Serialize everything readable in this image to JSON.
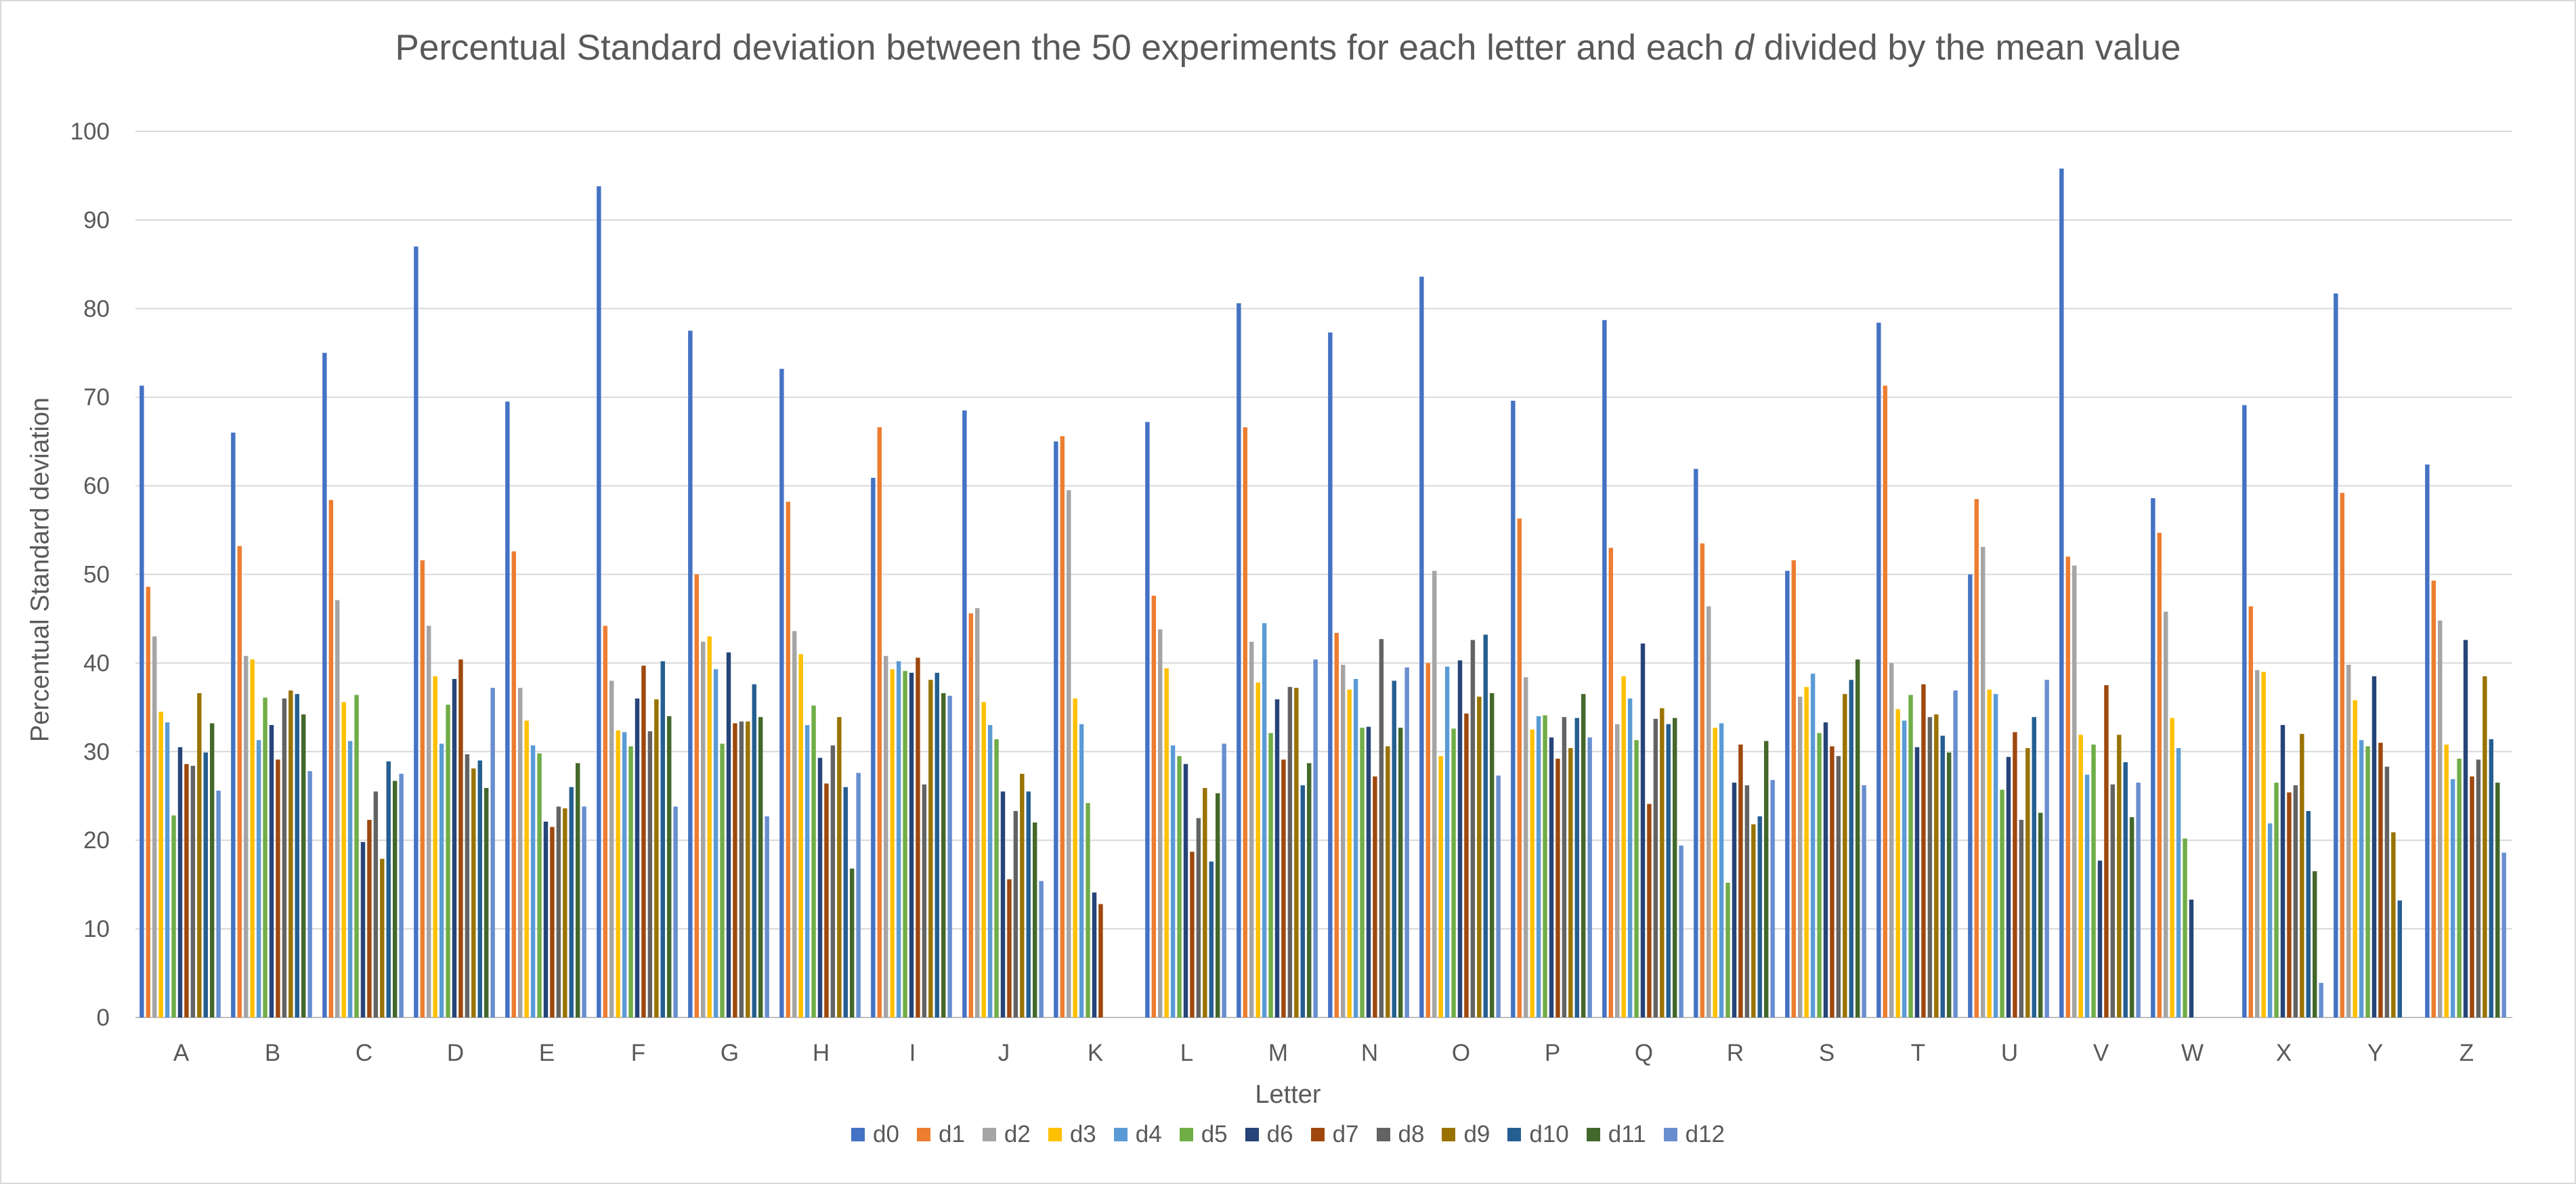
{
  "chart_data": {
    "type": "bar",
    "title": {
      "prefix": "Percentual Standard deviation between the 50 experiments for each letter and each ",
      "italic": "d",
      "suffix": " divided by the mean value"
    },
    "xlabel": "Letter",
    "ylabel": "Percentual Standard deviation",
    "ylim": [
      0,
      100
    ],
    "yticks": [
      0,
      10,
      20,
      30,
      40,
      50,
      60,
      70,
      80,
      90,
      100
    ],
    "grid": true,
    "legend_position": "bottom",
    "categories": [
      "A",
      "B",
      "C",
      "D",
      "E",
      "F",
      "G",
      "H",
      "I",
      "J",
      "K",
      "L",
      "M",
      "N",
      "O",
      "P",
      "Q",
      "R",
      "S",
      "T",
      "U",
      "V",
      "W",
      "X",
      "Y",
      "Z"
    ],
    "series": [
      {
        "name": "d0",
        "color": "#4472c4",
        "values": [
          71.3,
          66,
          75,
          87,
          69.5,
          93.8,
          77.5,
          73.2,
          60.9,
          68.5,
          65,
          67.2,
          80.6,
          77.3,
          83.6,
          69.6,
          78.7,
          61.9,
          50.4,
          78.4,
          50,
          95.8,
          58.6,
          69.1,
          81.7,
          62.4
        ]
      },
      {
        "name": "d1",
        "color": "#ed7d31",
        "values": [
          48.6,
          53.2,
          58.4,
          51.6,
          52.6,
          44.2,
          50,
          58.2,
          66.6,
          45.6,
          65.6,
          47.6,
          66.6,
          43.4,
          40,
          56.3,
          53,
          53.5,
          51.6,
          71.3,
          58.5,
          52,
          54.7,
          46.4,
          59.2,
          49.3
        ]
      },
      {
        "name": "d2",
        "color": "#a5a5a5",
        "values": [
          43,
          40.8,
          47.1,
          44.2,
          37.2,
          38,
          42.4,
          43.6,
          40.8,
          46.2,
          59.5,
          43.8,
          42.4,
          39.8,
          50.4,
          38.4,
          33.1,
          46.4,
          36.2,
          40,
          53.1,
          51,
          45.8,
          39.2,
          39.8,
          44.8
        ]
      },
      {
        "name": "d3",
        "color": "#ffc000",
        "values": [
          34.5,
          40.4,
          35.6,
          38.5,
          33.5,
          32.4,
          43,
          41,
          39.3,
          35.6,
          36,
          39.4,
          37.8,
          37,
          29.5,
          32.5,
          38.5,
          32.7,
          37.3,
          34.8,
          37,
          31.9,
          33.8,
          39,
          35.8,
          30.8
        ]
      },
      {
        "name": "d4",
        "color": "#5b9bd5",
        "values": [
          33.3,
          31.3,
          31.2,
          30.9,
          30.7,
          32.2,
          39.3,
          33,
          40.2,
          33,
          33.1,
          30.7,
          44.5,
          38.2,
          39.6,
          34,
          36,
          33.2,
          38.8,
          33.5,
          36.5,
          27.4,
          30.4,
          21.9,
          31.3,
          26.9
        ]
      },
      {
        "name": "d5",
        "color": "#70ad47",
        "values": [
          22.8,
          36.1,
          36.4,
          35.3,
          29.8,
          30.6,
          30.9,
          35.2,
          39.1,
          31.4,
          24.2,
          29.5,
          32.1,
          32.7,
          32.6,
          34.1,
          31.3,
          15.2,
          32.1,
          36.4,
          25.7,
          30.8,
          20.2,
          26.5,
          30.6,
          29.2
        ]
      },
      {
        "name": "d6",
        "color": "#264478",
        "values": [
          30.5,
          33,
          19.8,
          38.2,
          22.1,
          36,
          41.2,
          29.3,
          38.9,
          25.5,
          14.1,
          28.6,
          35.9,
          32.8,
          40.3,
          31.6,
          42.2,
          26.5,
          33.3,
          30.5,
          29.4,
          17.7,
          13.3,
          33,
          38.5,
          42.6
        ]
      },
      {
        "name": "d7",
        "color": "#9e480e",
        "values": [
          28.6,
          29.1,
          22.3,
          40.4,
          21.5,
          39.7,
          33.2,
          26.4,
          40.6,
          15.6,
          12.8,
          18.7,
          29.1,
          27.2,
          34.3,
          29.2,
          24.1,
          30.8,
          30.6,
          37.6,
          32.2,
          37.5,
          null,
          25.4,
          31,
          27.2
        ]
      },
      {
        "name": "d8",
        "color": "#636363",
        "values": [
          28.4,
          36,
          25.5,
          29.7,
          23.8,
          32.3,
          33.4,
          30.7,
          26.3,
          23.3,
          null,
          22.5,
          37.3,
          42.7,
          42.6,
          33.9,
          33.7,
          26.2,
          29.5,
          33.9,
          22.3,
          26.3,
          null,
          26.2,
          28.3,
          29.1
        ]
      },
      {
        "name": "d9",
        "color": "#997300",
        "values": [
          36.6,
          36.9,
          17.9,
          28.1,
          23.6,
          35.9,
          33.4,
          33.9,
          38.1,
          27.5,
          null,
          25.9,
          37.2,
          30.6,
          36.2,
          30.4,
          34.9,
          21.8,
          36.5,
          34.2,
          30.4,
          31.9,
          null,
          32,
          20.9,
          38.5
        ]
      },
      {
        "name": "d10",
        "color": "#255e91",
        "values": [
          29.9,
          36.5,
          28.9,
          29,
          26,
          40.2,
          37.6,
          26,
          38.9,
          25.5,
          null,
          17.6,
          26.2,
          38,
          43.2,
          33.8,
          33.1,
          22.7,
          38.1,
          31.8,
          33.9,
          28.8,
          null,
          23.3,
          13.2,
          31.4
        ]
      },
      {
        "name": "d11",
        "color": "#43682b",
        "values": [
          33.2,
          34.2,
          26.7,
          25.9,
          28.7,
          34,
          33.9,
          16.8,
          36.6,
          22,
          null,
          25.3,
          28.7,
          32.7,
          36.6,
          36.5,
          33.8,
          31.2,
          40.4,
          29.9,
          23.1,
          22.6,
          null,
          16.5,
          null,
          26.5
        ]
      },
      {
        "name": "d12",
        "color": "#698ed0",
        "values": [
          25.6,
          27.8,
          27.5,
          37.2,
          23.8,
          23.8,
          22.7,
          27.6,
          36.3,
          15.4,
          null,
          30.9,
          40.4,
          39.5,
          27.3,
          31.6,
          19.4,
          26.8,
          26.2,
          36.9,
          38.1,
          26.5,
          null,
          3.9,
          null,
          18.6
        ]
      }
    ]
  }
}
